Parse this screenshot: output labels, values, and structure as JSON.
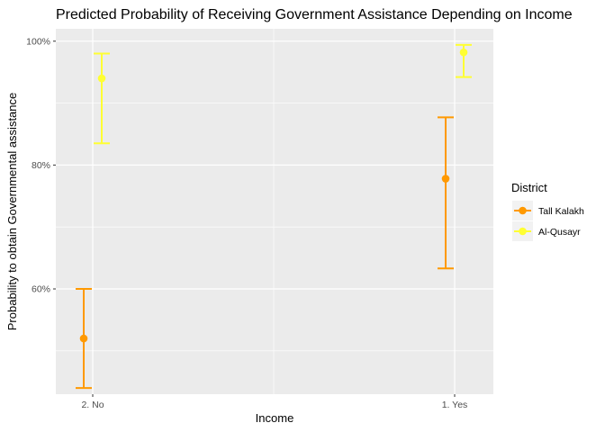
{
  "chart_data": {
    "type": "scatter",
    "title": "Predicted Probability of Receiving Government Assistance Depending on Income",
    "xlabel": "Income",
    "ylabel": "Probability to obtain Governmental assistance",
    "categories": [
      "2. No",
      "1. Yes"
    ],
    "ylim": [
      0.43,
      1.02
    ],
    "yticks": [
      0.6,
      0.8,
      1.0
    ],
    "ytick_labels": [
      "60%",
      "80%",
      "100%"
    ],
    "grid": true,
    "legend": {
      "title": "District",
      "position": "right"
    },
    "series": [
      {
        "name": "Tall Kalakh",
        "color": "#FF9900",
        "values": [
          0.52,
          0.778
        ],
        "lower": [
          0.44,
          0.633
        ],
        "upper": [
          0.6,
          0.877
        ]
      },
      {
        "name": "Al-Qusayr",
        "color": "#FFFF33",
        "values": [
          0.94,
          0.982
        ],
        "lower": [
          0.835,
          0.942
        ],
        "upper": [
          0.98,
          0.994
        ]
      }
    ]
  }
}
